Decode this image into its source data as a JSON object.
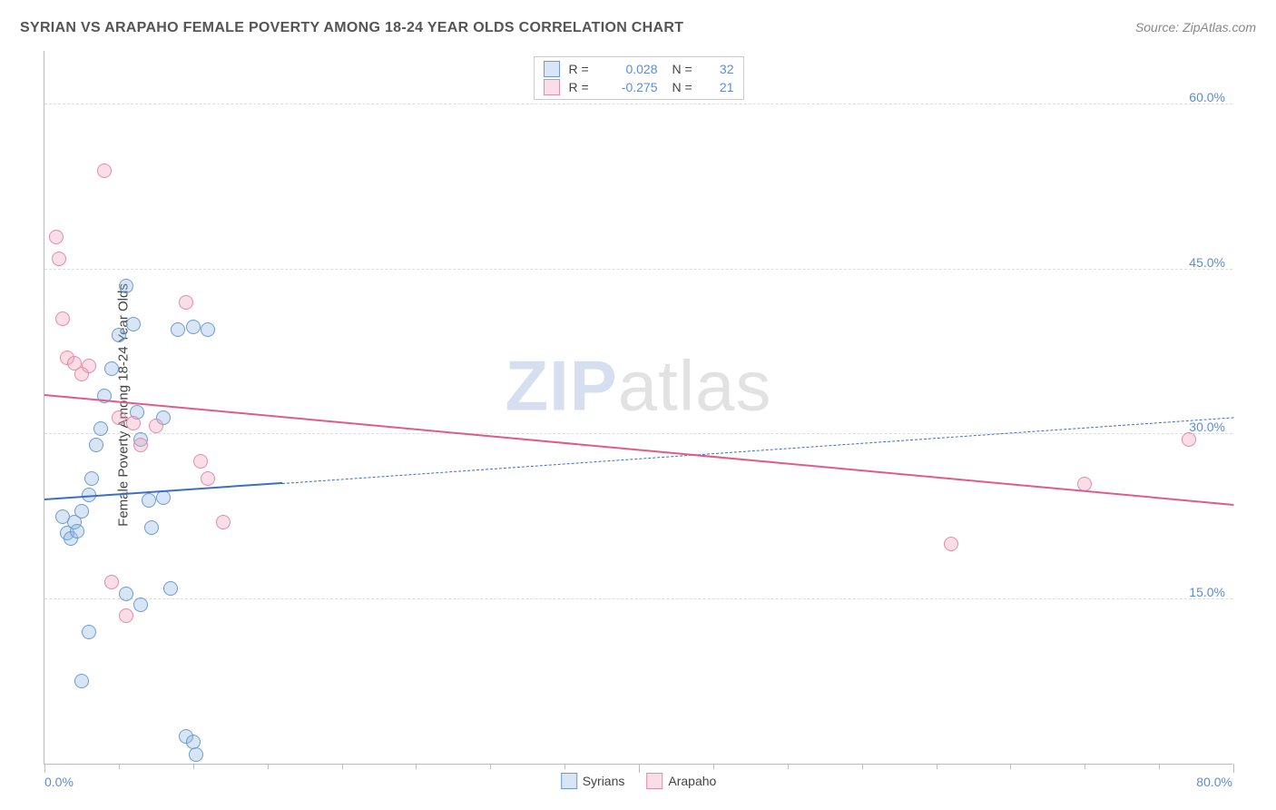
{
  "header": {
    "title": "SYRIAN VS ARAPAHO FEMALE POVERTY AMONG 18-24 YEAR OLDS CORRELATION CHART",
    "source": "Source: ZipAtlas.com"
  },
  "chart": {
    "type": "scatter",
    "background_color": "#ffffff",
    "grid_color": "#dddddd",
    "axis_color": "#bbbbbb",
    "ylabel": "Female Poverty Among 18-24 Year Olds",
    "ylabel_fontsize": 15,
    "xlim": [
      0,
      80
    ],
    "ylim": [
      0,
      65
    ],
    "yticks": [
      {
        "value": 15,
        "label": "15.0%"
      },
      {
        "value": 30,
        "label": "30.0%"
      },
      {
        "value": 45,
        "label": "45.0%"
      },
      {
        "value": 60,
        "label": "60.0%"
      }
    ],
    "xticks_minor": [
      5,
      10,
      15,
      20,
      25,
      30,
      35,
      45,
      50,
      55,
      60,
      65,
      70,
      75
    ],
    "xticks_major": [
      0,
      40,
      80
    ],
    "xaxis_labels": [
      {
        "value": 0,
        "label": "0.0%",
        "align": "left"
      },
      {
        "value": 80,
        "label": "80.0%",
        "align": "right"
      }
    ],
    "point_radius": 8,
    "point_border_width": 1.5,
    "point_fill_opacity": 0.35,
    "watermark": {
      "text_zip": "ZIP",
      "text_atlas": "atlas"
    },
    "series": [
      {
        "name": "Syrians",
        "color_stroke": "#6b9bd6",
        "color_fill": "rgba(140,180,225,0.35)",
        "points": [
          [
            1.2,
            22.5
          ],
          [
            1.5,
            21.0
          ],
          [
            1.8,
            20.5
          ],
          [
            2.0,
            22.0
          ],
          [
            2.2,
            21.2
          ],
          [
            2.5,
            23.0
          ],
          [
            3.0,
            24.5
          ],
          [
            3.2,
            26.0
          ],
          [
            3.5,
            29.0
          ],
          [
            3.8,
            30.5
          ],
          [
            4.0,
            33.5
          ],
          [
            4.5,
            36.0
          ],
          [
            5.0,
            39.0
          ],
          [
            5.5,
            43.5
          ],
          [
            6.0,
            40.0
          ],
          [
            6.2,
            32.0
          ],
          [
            6.5,
            29.5
          ],
          [
            7.0,
            24.0
          ],
          [
            7.2,
            21.5
          ],
          [
            8.0,
            31.5
          ],
          [
            8.5,
            16.0
          ],
          [
            9.0,
            39.5
          ],
          [
            10.0,
            39.8
          ],
          [
            11.0,
            39.5
          ],
          [
            3.0,
            12.0
          ],
          [
            2.5,
            7.5
          ],
          [
            5.5,
            15.5
          ],
          [
            6.5,
            14.5
          ],
          [
            9.5,
            2.5
          ],
          [
            10.0,
            2.0
          ],
          [
            10.2,
            0.8
          ],
          [
            8.0,
            24.2
          ]
        ],
        "trend": {
          "x1": 0,
          "y1": 24.0,
          "x2": 80,
          "y2": 31.5,
          "solid_until_x": 16,
          "color": "#3c6fc4",
          "width_solid": 2.5,
          "width_dashed": 1.5,
          "dash": "6,6"
        },
        "R": "0.028",
        "N": "32"
      },
      {
        "name": "Arapaho",
        "color_stroke": "#e68aa5",
        "color_fill": "rgba(240,160,185,0.35)",
        "points": [
          [
            0.8,
            48.0
          ],
          [
            1.0,
            46.0
          ],
          [
            1.2,
            40.5
          ],
          [
            1.5,
            37.0
          ],
          [
            2.0,
            36.5
          ],
          [
            2.5,
            35.5
          ],
          [
            3.0,
            36.2
          ],
          [
            4.0,
            54.0
          ],
          [
            5.0,
            31.5
          ],
          [
            6.0,
            31.0
          ],
          [
            6.5,
            29.0
          ],
          [
            7.5,
            30.8
          ],
          [
            9.5,
            42.0
          ],
          [
            10.5,
            27.5
          ],
          [
            11.0,
            26.0
          ],
          [
            12.0,
            22.0
          ],
          [
            4.5,
            16.5
          ],
          [
            5.5,
            13.5
          ],
          [
            61.0,
            20.0
          ],
          [
            70.0,
            25.5
          ],
          [
            77.0,
            29.5
          ]
        ],
        "trend": {
          "x1": 0,
          "y1": 33.5,
          "x2": 80,
          "y2": 23.5,
          "solid_until_x": 80,
          "color": "#e05c88",
          "width_solid": 2.2
        },
        "R": "-0.275",
        "N": "21"
      }
    ]
  },
  "legend_top": {
    "r_label": "R =",
    "n_label": "N ="
  },
  "legend_bottom": {
    "items": [
      "Syrians",
      "Arapaho"
    ]
  }
}
